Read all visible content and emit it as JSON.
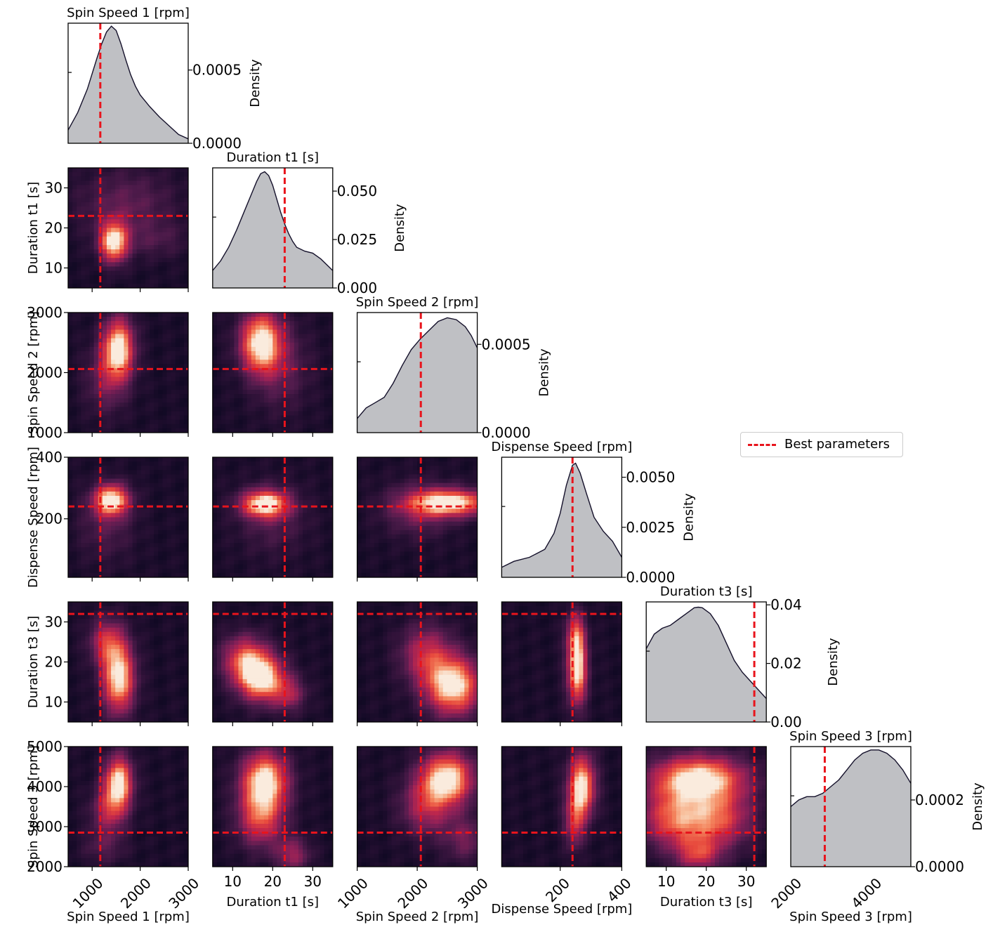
{
  "chart_data": {
    "type": "heatmap",
    "title": "",
    "variables": [
      {
        "name": "Spin Speed 1 [rpm]",
        "range": [
          500,
          3000
        ],
        "best": 1170,
        "xticks": [
          "1000",
          "2000",
          "3000"
        ],
        "xtick_values": [
          1000,
          2000,
          3000
        ],
        "yticks": [],
        "density_ticks": [
          "0.0000",
          "0.0005"
        ],
        "density_tick_values": [
          0,
          0.0005
        ],
        "density_max": 0.00082,
        "density_curve": [
          [
            500,
            9e-05
          ],
          [
            700,
            0.00021
          ],
          [
            900,
            0.00037
          ],
          [
            1100,
            0.00058
          ],
          [
            1200,
            0.00068
          ],
          [
            1300,
            0.00076
          ],
          [
            1400,
            0.0008
          ],
          [
            1500,
            0.00077
          ],
          [
            1600,
            0.00068
          ],
          [
            1700,
            0.00057
          ],
          [
            1800,
            0.00047
          ],
          [
            1900,
            0.00039
          ],
          [
            2000,
            0.00033
          ],
          [
            2200,
            0.00025
          ],
          [
            2400,
            0.00018
          ],
          [
            2600,
            0.00012
          ],
          [
            2800,
            6e-05
          ],
          [
            3000,
            3e-05
          ]
        ]
      },
      {
        "name": "Duration t1 [s]",
        "range": [
          5,
          35
        ],
        "best": 23,
        "xticks": [
          "10",
          "20",
          "30"
        ],
        "xtick_values": [
          10,
          20,
          30
        ],
        "yticks": [
          "10",
          "20",
          "30"
        ],
        "ytick_values": [
          10,
          20,
          30
        ],
        "density_ticks": [
          "0.000",
          "0.025",
          "0.050"
        ],
        "density_tick_values": [
          0,
          0.025,
          0.05
        ],
        "density_max": 0.062,
        "density_curve": [
          [
            5,
            0.009
          ],
          [
            7,
            0.014
          ],
          [
            9,
            0.021
          ],
          [
            11,
            0.03
          ],
          [
            13,
            0.04
          ],
          [
            15,
            0.05
          ],
          [
            16,
            0.055
          ],
          [
            17,
            0.059
          ],
          [
            18,
            0.06
          ],
          [
            19,
            0.058
          ],
          [
            20,
            0.053
          ],
          [
            21,
            0.046
          ],
          [
            22,
            0.039
          ],
          [
            23,
            0.033
          ],
          [
            24,
            0.028
          ],
          [
            25,
            0.024
          ],
          [
            26,
            0.021
          ],
          [
            28,
            0.019
          ],
          [
            30,
            0.018
          ],
          [
            32,
            0.015
          ],
          [
            35,
            0.009
          ]
        ]
      },
      {
        "name": "Spin Speed 2 [rpm]",
        "range": [
          1000,
          3000
        ],
        "best": 2060,
        "xticks": [
          "1000",
          "2000",
          "3000"
        ],
        "xtick_values": [
          1000,
          2000,
          3000
        ],
        "yticks": [
          "1000",
          "2000",
          "3000"
        ],
        "ytick_values": [
          1000,
          2000,
          3000
        ],
        "density_ticks": [
          "0.0000",
          "0.0005"
        ],
        "density_tick_values": [
          0,
          0.0005
        ],
        "density_max": 0.00068,
        "density_curve": [
          [
            1000,
            8e-05
          ],
          [
            1150,
            0.00014
          ],
          [
            1300,
            0.00017
          ],
          [
            1450,
            0.0002
          ],
          [
            1600,
            0.00028
          ],
          [
            1750,
            0.00038
          ],
          [
            1900,
            0.00047
          ],
          [
            2050,
            0.00053
          ],
          [
            2200,
            0.00058
          ],
          [
            2350,
            0.00063
          ],
          [
            2500,
            0.00065
          ],
          [
            2650,
            0.00064
          ],
          [
            2800,
            0.0006
          ],
          [
            2900,
            0.00055
          ],
          [
            3000,
            0.00048
          ]
        ]
      },
      {
        "name": "Dispense Speed [rpm]",
        "range": [
          10,
          400
        ],
        "best": 240,
        "xticks": [
          "200",
          "400"
        ],
        "xtick_values": [
          200,
          400
        ],
        "yticks": [
          "200",
          "400"
        ],
        "ytick_values": [
          200,
          400
        ],
        "density_ticks": [
          "0.0000",
          "0.0025",
          "0.0050"
        ],
        "density_tick_values": [
          0,
          0.0025,
          0.005
        ],
        "density_max": 0.006,
        "density_curve": [
          [
            10,
            0.0005
          ],
          [
            50,
            0.0008
          ],
          [
            100,
            0.001
          ],
          [
            150,
            0.0014
          ],
          [
            180,
            0.0022
          ],
          [
            200,
            0.0032
          ],
          [
            220,
            0.0046
          ],
          [
            240,
            0.0056
          ],
          [
            250,
            0.0057
          ],
          [
            265,
            0.0052
          ],
          [
            285,
            0.0042
          ],
          [
            310,
            0.003
          ],
          [
            340,
            0.0023
          ],
          [
            370,
            0.0018
          ],
          [
            400,
            0.001
          ]
        ]
      },
      {
        "name": "Duration t3 [s]",
        "range": [
          5,
          35
        ],
        "best": 32,
        "xticks": [
          "10",
          "20",
          "30"
        ],
        "xtick_values": [
          10,
          20,
          30
        ],
        "yticks": [
          "10",
          "20",
          "30"
        ],
        "ytick_values": [
          10,
          20,
          30
        ],
        "density_ticks": [
          "0.00",
          "0.02",
          "0.04"
        ],
        "density_tick_values": [
          0,
          0.02,
          0.04
        ],
        "density_max": 0.041,
        "density_curve": [
          [
            5,
            0.025
          ],
          [
            7,
            0.03
          ],
          [
            9,
            0.032
          ],
          [
            11,
            0.033
          ],
          [
            13,
            0.035
          ],
          [
            15,
            0.037
          ],
          [
            17,
            0.039
          ],
          [
            18,
            0.0392
          ],
          [
            19,
            0.039
          ],
          [
            21,
            0.037
          ],
          [
            23,
            0.033
          ],
          [
            25,
            0.027
          ],
          [
            27,
            0.021
          ],
          [
            29,
            0.017
          ],
          [
            31,
            0.014
          ],
          [
            33,
            0.011
          ],
          [
            35,
            0.008
          ]
        ]
      },
      {
        "name": "Spin Speed 3 [rpm]",
        "range": [
          2000,
          5000
        ],
        "best": 2850,
        "xticks": [
          "2000",
          "4000"
        ],
        "xtick_values": [
          2000,
          4000
        ],
        "yticks": [
          "2000",
          "3000",
          "4000",
          "5000"
        ],
        "ytick_values": [
          2000,
          3000,
          4000,
          5000
        ],
        "density_ticks": [
          "0.0000",
          "0.0002"
        ],
        "density_tick_values": [
          0,
          0.0002
        ],
        "density_max": 0.00036,
        "density_curve": [
          [
            2000,
            0.00018
          ],
          [
            2200,
            0.0002
          ],
          [
            2400,
            0.00021
          ],
          [
            2600,
            0.00021
          ],
          [
            2800,
            0.00022
          ],
          [
            3000,
            0.00024
          ],
          [
            3200,
            0.00026
          ],
          [
            3400,
            0.00029
          ],
          [
            3600,
            0.00032
          ],
          [
            3800,
            0.00034
          ],
          [
            4000,
            0.00035
          ],
          [
            4200,
            0.00035
          ],
          [
            4400,
            0.00034
          ],
          [
            4600,
            0.00032
          ],
          [
            4800,
            0.00029
          ],
          [
            5000,
            0.00025
          ]
        ]
      }
    ],
    "density_label": "Density",
    "heatmap_blobs": {
      "1-0": [
        {
          "x": 1450,
          "y": 16.5,
          "sx": 200,
          "sy": 3.5,
          "w": 1.0
        },
        {
          "x": 1700,
          "y": 26,
          "sx": 700,
          "sy": 6,
          "w": 0.25
        },
        {
          "x": 2300,
          "y": 17,
          "sx": 500,
          "sy": 3,
          "w": 0.15
        }
      ],
      "2-0": [
        {
          "x": 1550,
          "y": 2400,
          "sx": 220,
          "sy": 350,
          "w": 1.0
        },
        {
          "x": 1300,
          "y": 1900,
          "sx": 300,
          "sy": 400,
          "w": 0.3
        }
      ],
      "2-1": [
        {
          "x": 17,
          "y": 2500,
          "sx": 3.5,
          "sy": 350,
          "w": 1.0
        },
        {
          "x": 22,
          "y": 2100,
          "sx": 5,
          "sy": 500,
          "w": 0.25
        }
      ],
      "3-0": [
        {
          "x": 1400,
          "y": 260,
          "sx": 250,
          "sy": 35,
          "w": 1.0
        },
        {
          "x": 1300,
          "y": 180,
          "sx": 400,
          "sy": 80,
          "w": 0.2
        }
      ],
      "3-1": [
        {
          "x": 18,
          "y": 248,
          "sx": 4,
          "sy": 30,
          "w": 1.0
        },
        {
          "x": 20,
          "y": 200,
          "sx": 6,
          "sy": 80,
          "w": 0.2
        }
      ],
      "3-2": [
        {
          "x": 2550,
          "y": 252,
          "sx": 450,
          "sy": 30,
          "w": 1.0
        },
        {
          "x": 2000,
          "y": 230,
          "sx": 400,
          "sy": 60,
          "w": 0.3
        }
      ],
      "4-0": [
        {
          "x": 1550,
          "y": 16,
          "sx": 230,
          "sy": 6,
          "w": 1.0
        },
        {
          "x": 1300,
          "y": 25,
          "sx": 250,
          "sy": 4,
          "w": 0.5
        }
      ],
      "4-1": [
        {
          "x": 17,
          "y": 16,
          "sx": 4,
          "sy": 4,
          "w": 1.0
        },
        {
          "x": 13,
          "y": 21,
          "sx": 4,
          "sy": 4,
          "w": 0.6
        },
        {
          "x": 24,
          "y": 12,
          "sx": 3,
          "sy": 3,
          "w": 0.4
        }
      ],
      "4-2": [
        {
          "x": 2600,
          "y": 14,
          "sx": 320,
          "sy": 5,
          "w": 1.0
        },
        {
          "x": 2150,
          "y": 22,
          "sx": 300,
          "sy": 5,
          "w": 0.5
        }
      ],
      "4-3": [
        {
          "x": 255,
          "y": 18,
          "sx": 22,
          "sy": 6,
          "w": 1.0
        },
        {
          "x": 250,
          "y": 27,
          "sx": 22,
          "sy": 4,
          "w": 0.5
        }
      ],
      "5-0": [
        {
          "x": 1550,
          "y": 4100,
          "sx": 200,
          "sy": 450,
          "w": 1.0
        },
        {
          "x": 1350,
          "y": 3400,
          "sx": 250,
          "sy": 400,
          "w": 0.45
        },
        {
          "x": 1250,
          "y": 2500,
          "sx": 300,
          "sy": 300,
          "w": 0.2
        }
      ],
      "5-1": [
        {
          "x": 18,
          "y": 4150,
          "sx": 4,
          "sy": 500,
          "w": 1.0
        },
        {
          "x": 17,
          "y": 3200,
          "sx": 4,
          "sy": 500,
          "w": 0.6
        },
        {
          "x": 25,
          "y": 2300,
          "sx": 3,
          "sy": 300,
          "w": 0.4
        }
      ],
      "5-2": [
        {
          "x": 2500,
          "y": 4200,
          "sx": 300,
          "sy": 450,
          "w": 1.0
        },
        {
          "x": 2150,
          "y": 3500,
          "sx": 300,
          "sy": 500,
          "w": 0.45
        },
        {
          "x": 2800,
          "y": 2700,
          "sx": 250,
          "sy": 400,
          "w": 0.3
        }
      ],
      "5-3": [
        {
          "x": 270,
          "y": 4000,
          "sx": 30,
          "sy": 550,
          "w": 1.0
        },
        {
          "x": 245,
          "y": 3100,
          "sx": 22,
          "sy": 450,
          "w": 0.45
        }
      ],
      "5-4": [
        {
          "x": 18,
          "y": 4200,
          "sx": 8,
          "sy": 400,
          "w": 1.0
        },
        {
          "x": 12,
          "y": 3200,
          "sx": 6,
          "sy": 500,
          "w": 0.65
        },
        {
          "x": 23,
          "y": 3200,
          "sx": 6,
          "sy": 500,
          "w": 0.6
        },
        {
          "x": 18,
          "y": 2300,
          "sx": 4,
          "sy": 300,
          "w": 0.5
        }
      ]
    },
    "heatmap_base": 0.1,
    "grid": false,
    "legend": {
      "placement": "right",
      "label": "Best parameters"
    },
    "colors": {
      "best_line": "#e8141c",
      "density_fill": "#bfc0c4",
      "density_line": "#14102a"
    }
  }
}
